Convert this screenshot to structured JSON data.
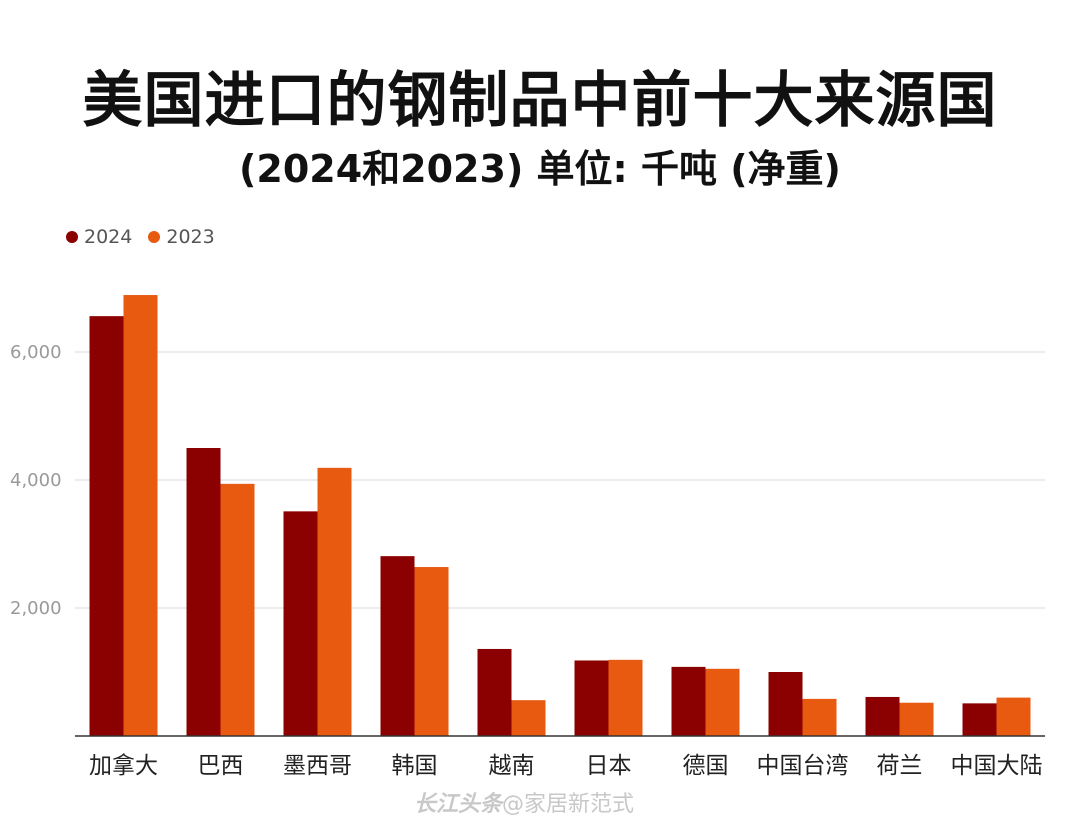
{
  "title": "美国进口的钢制品中前十大来源国",
  "subtitle": "(2024和2023) 单位: 千吨 (净重)",
  "watermark": {
    "brand": "长江头条",
    "handle": "@家居新范式"
  },
  "colors": {
    "series_2024": "#8b0000",
    "series_2023": "#e85a10",
    "grid": "#d9d9d9",
    "tick": "#9a9a9a",
    "category": "#222222"
  },
  "chart_data": {
    "type": "bar",
    "title": "美国进口的钢制品中前十大来源国",
    "subtitle": "(2024和2023) 单位: 千吨 (净重)",
    "categories": [
      "加拿大",
      "巴西",
      "墨西哥",
      "韩国",
      "越南",
      "日本",
      "德国",
      "中国台湾",
      "荷兰",
      "中国大陆"
    ],
    "series": [
      {
        "name": "2024",
        "values": [
          6560,
          4500,
          3510,
          2810,
          1360,
          1180,
          1080,
          1000,
          610,
          510
        ]
      },
      {
        "name": "2023",
        "values": [
          6890,
          3940,
          4190,
          2640,
          560,
          1190,
          1050,
          580,
          520,
          600
        ]
      }
    ],
    "yticks": [
      2000,
      4000,
      6000
    ],
    "ytick_labels": [
      "2,000",
      "4,000",
      "6,000"
    ],
    "ylim": [
      0,
      7200
    ],
    "xlabel": "",
    "ylabel": "",
    "grid": true,
    "legend_position": "top-left"
  }
}
